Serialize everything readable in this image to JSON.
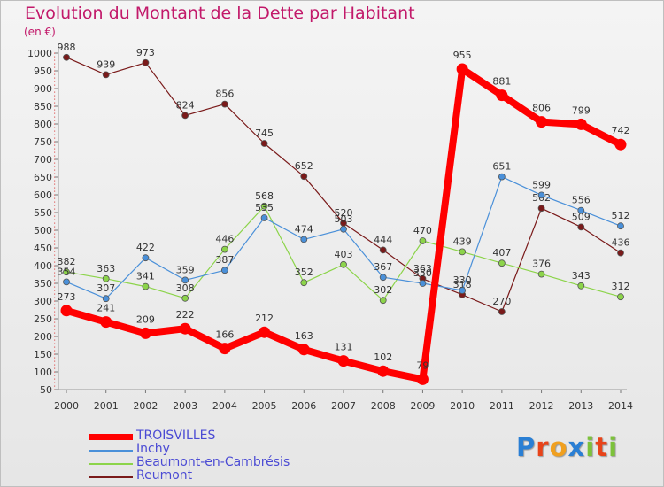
{
  "chart_data": {
    "type": "line",
    "title": "Evolution du Montant de la Dette par Habitant",
    "unit_label": "(en €)",
    "xlabel": "",
    "ylabel": "",
    "x": [
      "2000",
      "2001",
      "2002",
      "2003",
      "2004",
      "2005",
      "2006",
      "2007",
      "2008",
      "2009",
      "2010",
      "2011",
      "2012",
      "2013",
      "2014"
    ],
    "ylim": [
      50,
      1000
    ],
    "yticks": [
      50,
      100,
      150,
      200,
      250,
      300,
      350,
      400,
      450,
      500,
      550,
      600,
      650,
      700,
      750,
      800,
      850,
      900,
      950,
      1000
    ],
    "grid": false,
    "legend_position": "bottom-left",
    "series": [
      {
        "name": "TROISVILLES",
        "color": "#ff0000",
        "values": [
          273,
          241,
          209,
          222,
          166,
          212,
          163,
          131,
          102,
          79,
          955,
          881,
          806,
          799,
          742
        ]
      },
      {
        "name": "Inchy",
        "color": "#4a90d9",
        "values": [
          354,
          307,
          422,
          359,
          387,
          535,
          474,
          503,
          367,
          350,
          330,
          651,
          599,
          556,
          512
        ]
      },
      {
        "name": "Beaumont-en-Cambrésis",
        "color": "#8cd44a",
        "values": [
          382,
          363,
          341,
          308,
          446,
          568,
          352,
          403,
          302,
          470,
          439,
          407,
          376,
          343,
          312
        ]
      },
      {
        "name": "Reumont",
        "color": "#7a1a1a",
        "values": [
          988,
          939,
          973,
          824,
          856,
          745,
          652,
          520,
          444,
          363,
          318,
          270,
          562,
          509,
          436
        ]
      }
    ]
  },
  "brand": {
    "letters": [
      "P",
      "r",
      "o",
      "x",
      "i",
      "t",
      "i"
    ],
    "colors": [
      "#2a7fd4",
      "#e8441a",
      "#f0a020",
      "#2a7fd4",
      "#7cc23a",
      "#e8441a",
      "#7cc23a"
    ]
  }
}
